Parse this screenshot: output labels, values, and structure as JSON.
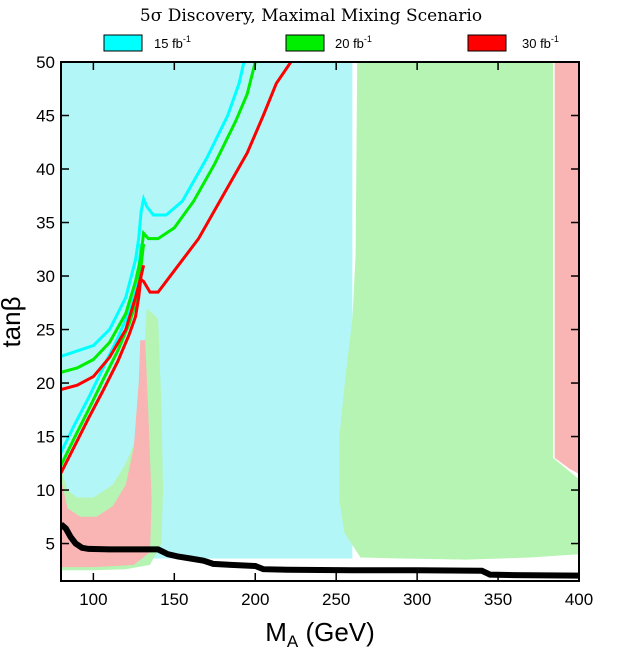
{
  "chart_data": {
    "type": "area",
    "title": "5σ Discovery, Maximal Mixing Scenario",
    "xlabel": "M",
    "xlabel_sub": "A",
    "xlabel_unit": " (GeV)",
    "ylabel": "tanβ",
    "xlim": [
      80,
      400
    ],
    "ylim": [
      1.5,
      50
    ],
    "xticks": [
      100,
      150,
      200,
      250,
      300,
      350,
      400
    ],
    "yticks": [
      5,
      10,
      15,
      20,
      25,
      30,
      35,
      40,
      45,
      50
    ],
    "legend_position": "top",
    "legend": [
      {
        "name": "15 fb",
        "sup": "-1",
        "color": "#00ffff"
      },
      {
        "name": "20 fb",
        "sup": "-1",
        "color": "#00ee00"
      },
      {
        "name": "30 fb",
        "sup": "-1",
        "color": "#ff0000"
      }
    ],
    "region_colors": {
      "lum15": "#b3f6f8",
      "lum20": "#b6f4b3",
      "lum30": "#f9b4b4",
      "black": "#000000"
    },
    "regions": [
      {
        "name": "15 fb-1 region",
        "series": "lum15",
        "points": [
          [
            80,
            50
          ],
          [
            260,
            50
          ],
          [
            260,
            3.6
          ],
          [
            80,
            3.6
          ]
        ]
      },
      {
        "name": "20 fb-1 region right",
        "series": "lum20",
        "points": [
          [
            263,
            50
          ],
          [
            384,
            50
          ],
          [
            384,
            13
          ],
          [
            400,
            11
          ],
          [
            400,
            4
          ],
          [
            370,
            3.7
          ],
          [
            330,
            3.5
          ],
          [
            290,
            3.6
          ],
          [
            265,
            3.7
          ],
          [
            255,
            6
          ],
          [
            252,
            9
          ],
          [
            252,
            15
          ],
          [
            256,
            21
          ],
          [
            260,
            26
          ],
          [
            262,
            32
          ]
        ]
      },
      {
        "name": "30 fb-1 region right",
        "series": "lum30",
        "points": [
          [
            385,
            50
          ],
          [
            400,
            50
          ],
          [
            400,
            11.5
          ],
          [
            394,
            12
          ],
          [
            385,
            13
          ]
        ]
      },
      {
        "name": "20 fb-1 region lower left",
        "series": "lum20",
        "points": [
          [
            80,
            12
          ],
          [
            84,
            10
          ],
          [
            90,
            9.3
          ],
          [
            100,
            9.3
          ],
          [
            112,
            10.5
          ],
          [
            120,
            12.5
          ],
          [
            127,
            15
          ],
          [
            131,
            22
          ],
          [
            133,
            27
          ],
          [
            140,
            26
          ],
          [
            142,
            18
          ],
          [
            143,
            10
          ],
          [
            142,
            5
          ],
          [
            135,
            3
          ],
          [
            120,
            2.6
          ],
          [
            100,
            2.5
          ],
          [
            80,
            2.5
          ]
        ]
      },
      {
        "name": "30 fb-1 region lower left",
        "series": "lum30",
        "points": [
          [
            80,
            11
          ],
          [
            84,
            8.3
          ],
          [
            92,
            7.5
          ],
          [
            102,
            7.5
          ],
          [
            112,
            8.5
          ],
          [
            120,
            10.5
          ],
          [
            125,
            14
          ],
          [
            128,
            20
          ],
          [
            129,
            24
          ],
          [
            132,
            24
          ],
          [
            134,
            17
          ],
          [
            136,
            9
          ],
          [
            135,
            4.2
          ],
          [
            125,
            3
          ],
          [
            100,
            2.8
          ],
          [
            80,
            2.8
          ]
        ]
      }
    ],
    "series": [
      {
        "name": "15 fb-1 upper",
        "color": "#00ffff",
        "points": [
          [
            80,
            22.5
          ],
          [
            90,
            23
          ],
          [
            100,
            23.5
          ],
          [
            110,
            25
          ],
          [
            120,
            28
          ],
          [
            126,
            31.5
          ],
          [
            128,
            33.5
          ],
          [
            129.5,
            36
          ],
          [
            131,
            37.2
          ],
          [
            133,
            36.5
          ],
          [
            137,
            35.7
          ],
          [
            145,
            35.7
          ],
          [
            155,
            37
          ],
          [
            170,
            41
          ],
          [
            183,
            45
          ],
          [
            190,
            48
          ],
          [
            193,
            50
          ]
        ]
      },
      {
        "name": "15 fb-1 lower",
        "color": "#00ffff",
        "points": [
          [
            80,
            13.5
          ],
          [
            88,
            16
          ],
          [
            97,
            18.6
          ],
          [
            106,
            21.4
          ],
          [
            115,
            24.2
          ],
          [
            122,
            26.6
          ],
          [
            126,
            28.5
          ],
          [
            128,
            30.6
          ],
          [
            129.5,
            33
          ]
        ]
      },
      {
        "name": "20 fb-1 upper",
        "color": "#00ee00",
        "points": [
          [
            80,
            21
          ],
          [
            90,
            21.4
          ],
          [
            100,
            22.2
          ],
          [
            110,
            23.8
          ],
          [
            120,
            26.5
          ],
          [
            126,
            29.5
          ],
          [
            129,
            31.5
          ],
          [
            131,
            34
          ],
          [
            134,
            33.5
          ],
          [
            140,
            33.5
          ],
          [
            150,
            34.5
          ],
          [
            162,
            37
          ],
          [
            175,
            40.5
          ],
          [
            188,
            44.5
          ],
          [
            195,
            47
          ],
          [
            200,
            50
          ]
        ]
      },
      {
        "name": "20 fb-1 lower",
        "color": "#00ee00",
        "points": [
          [
            80,
            12.3
          ],
          [
            88,
            14.8
          ],
          [
            97,
            17.5
          ],
          [
            106,
            20.3
          ],
          [
            115,
            23
          ],
          [
            122,
            25.5
          ],
          [
            126,
            27.4
          ],
          [
            128,
            29
          ],
          [
            129.5,
            31
          ],
          [
            131,
            33
          ]
        ]
      },
      {
        "name": "30 fb-1 upper",
        "color": "#ff0000",
        "points": [
          [
            80,
            19.4
          ],
          [
            90,
            19.8
          ],
          [
            100,
            20.6
          ],
          [
            110,
            22.4
          ],
          [
            120,
            25
          ],
          [
            126,
            28
          ],
          [
            129,
            29.7
          ],
          [
            131,
            29.5
          ],
          [
            135,
            28.5
          ],
          [
            140,
            28.5
          ],
          [
            150,
            30.5
          ],
          [
            165,
            33.5
          ],
          [
            180,
            37.5
          ],
          [
            195,
            41.5
          ],
          [
            205,
            45
          ],
          [
            213,
            48
          ],
          [
            222,
            50
          ]
        ]
      },
      {
        "name": "30 fb-1 lower",
        "color": "#ff0000",
        "points": [
          [
            80,
            11.6
          ],
          [
            88,
            14
          ],
          [
            97,
            16.7
          ],
          [
            106,
            19.3
          ],
          [
            115,
            22
          ],
          [
            122,
            24.5
          ],
          [
            126,
            26.2
          ],
          [
            128,
            28
          ],
          [
            129.5,
            30
          ],
          [
            131,
            31
          ]
        ]
      },
      {
        "name": "black boundary",
        "color": "#000000",
        "points": [
          [
            80,
            6.8
          ],
          [
            83,
            6.4
          ],
          [
            86,
            5.6
          ],
          [
            89,
            5
          ],
          [
            93,
            4.6
          ],
          [
            97,
            4.5
          ],
          [
            110,
            4.45
          ],
          [
            140,
            4.45
          ],
          [
            146,
            4
          ],
          [
            152,
            3.8
          ],
          [
            160,
            3.6
          ],
          [
            168,
            3.4
          ],
          [
            174,
            3.1
          ],
          [
            185,
            3
          ],
          [
            200,
            2.9
          ],
          [
            205,
            2.6
          ],
          [
            220,
            2.55
          ],
          [
            260,
            2.5
          ],
          [
            300,
            2.5
          ],
          [
            340,
            2.45
          ],
          [
            345,
            2.1
          ],
          [
            360,
            2.05
          ],
          [
            400,
            2
          ]
        ]
      }
    ]
  }
}
